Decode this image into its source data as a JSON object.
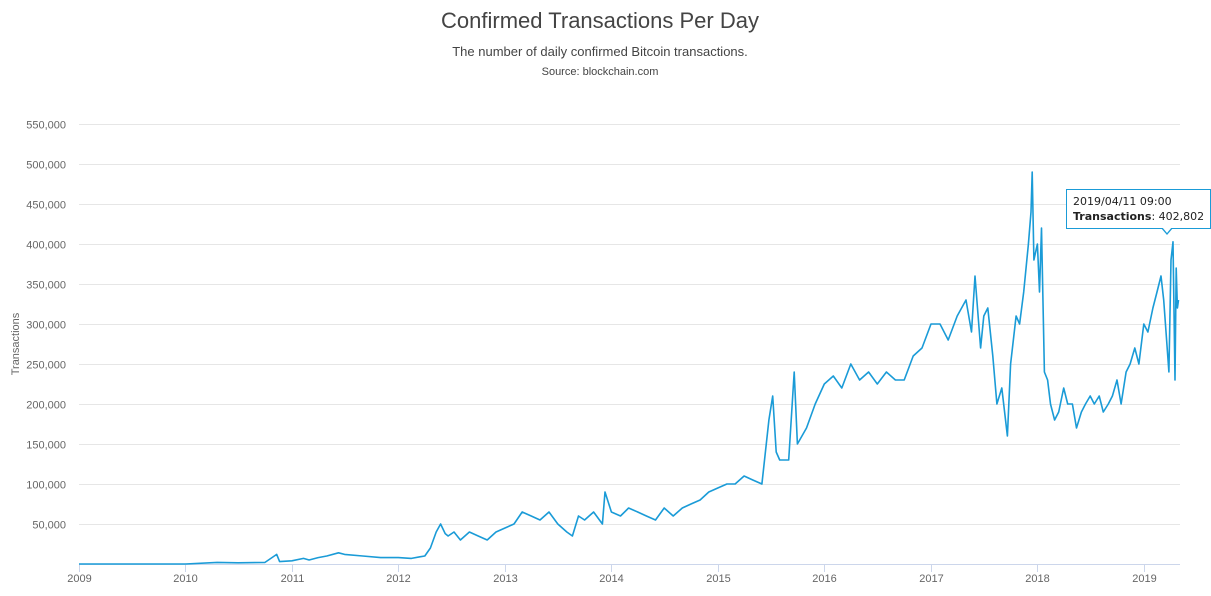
{
  "chart_data": {
    "type": "line",
    "title": "Confirmed Transactions Per Day",
    "subtitle": "The number of daily confirmed Bitcoin transactions.",
    "source": "Source: blockchain.com",
    "ylabel": "Transactions",
    "xlabel": "",
    "color": "#1a9bd7",
    "grid": true,
    "ylim": [
      0,
      550000
    ],
    "xlim": [
      "2009-01-01",
      "2019-05-05"
    ],
    "y_ticks": [
      "50,000",
      "100,000",
      "150,000",
      "200,000",
      "250,000",
      "300,000",
      "350,000",
      "400,000",
      "450,000",
      "500,000",
      "550,000"
    ],
    "y_tick_values": [
      50000,
      100000,
      150000,
      200000,
      250000,
      300000,
      350000,
      400000,
      450000,
      500000,
      550000
    ],
    "x_ticks": [
      "2009",
      "2010",
      "2011",
      "2012",
      "2013",
      "2014",
      "2015",
      "2016",
      "2017",
      "2018",
      "2019"
    ],
    "x_tick_dates": [
      "2009-01-01",
      "2010-01-01",
      "2011-01-01",
      "2012-01-01",
      "2013-01-01",
      "2014-01-01",
      "2015-01-01",
      "2016-01-01",
      "2017-01-01",
      "2018-01-01",
      "2019-01-01"
    ],
    "series": [
      {
        "x": [
          "2009-01-01",
          "2009-07-01",
          "2010-01-01",
          "2010-04-20",
          "2010-07-01",
          "2010-10-01",
          "2010-11-10",
          "2010-11-20",
          "2011-01-01",
          "2011-02-10",
          "2011-03-01",
          "2011-04-01",
          "2011-05-01",
          "2011-06-10",
          "2011-07-01",
          "2011-09-01",
          "2011-11-01",
          "2012-01-01",
          "2012-02-15",
          "2012-03-15",
          "2012-04-01",
          "2012-04-20",
          "2012-05-10",
          "2012-05-25",
          "2012-06-10",
          "2012-06-20",
          "2012-07-10",
          "2012-08-01",
          "2012-09-01",
          "2012-10-01",
          "2012-11-01",
          "2012-12-01",
          "2013-01-01",
          "2013-02-01",
          "2013-03-01",
          "2013-04-01",
          "2013-05-01",
          "2013-06-01",
          "2013-07-01",
          "2013-08-01",
          "2013-08-20",
          "2013-09-10",
          "2013-10-01",
          "2013-11-01",
          "2013-12-01",
          "2013-12-10",
          "2014-01-01",
          "2014-02-01",
          "2014-03-01",
          "2014-04-01",
          "2014-05-01",
          "2014-06-01",
          "2014-07-01",
          "2014-08-01",
          "2014-09-01",
          "2014-10-01",
          "2014-11-01",
          "2014-12-01",
          "2015-01-01",
          "2015-02-01",
          "2015-03-01",
          "2015-04-01",
          "2015-05-01",
          "2015-06-01",
          "2015-06-25",
          "2015-07-08",
          "2015-07-20",
          "2015-08-01",
          "2015-09-01",
          "2015-09-20",
          "2015-10-01",
          "2015-11-01",
          "2015-12-01",
          "2016-01-01",
          "2016-02-01",
          "2016-03-01",
          "2016-04-01",
          "2016-05-01",
          "2016-06-01",
          "2016-07-01",
          "2016-08-01",
          "2016-09-01",
          "2016-10-01",
          "2016-11-01",
          "2016-12-01",
          "2017-01-01",
          "2017-02-01",
          "2017-03-01",
          "2017-04-01",
          "2017-05-01",
          "2017-05-20",
          "2017-06-01",
          "2017-06-20",
          "2017-07-01",
          "2017-07-15",
          "2017-08-01",
          "2017-08-15",
          "2017-09-01",
          "2017-09-20",
          "2017-10-01",
          "2017-10-20",
          "2017-11-01",
          "2017-11-15",
          "2017-12-01",
          "2017-12-10",
          "2017-12-14",
          "2017-12-20",
          "2018-01-01",
          "2018-01-08",
          "2018-01-15",
          "2018-01-25",
          "2018-02-05",
          "2018-02-15",
          "2018-03-01",
          "2018-03-15",
          "2018-04-01",
          "2018-04-15",
          "2018-05-01",
          "2018-05-15",
          "2018-06-01",
          "2018-06-15",
          "2018-07-01",
          "2018-07-15",
          "2018-08-01",
          "2018-08-15",
          "2018-09-01",
          "2018-09-15",
          "2018-10-01",
          "2018-10-15",
          "2018-11-01",
          "2018-11-15",
          "2018-12-01",
          "2018-12-15",
          "2019-01-01",
          "2019-01-15",
          "2019-02-01",
          "2019-02-15",
          "2019-03-01",
          "2019-03-10",
          "2019-03-20",
          "2019-03-28",
          "2019-04-04",
          "2019-04-11",
          "2019-04-18",
          "2019-04-22",
          "2019-04-26",
          "2019-04-30"
        ],
        "values": [
          0,
          0,
          0,
          2000,
          1500,
          2000,
          12000,
          3000,
          4000,
          7000,
          5000,
          8000,
          10000,
          14000,
          12000,
          10000,
          8000,
          8000,
          7000,
          9000,
          10000,
          20000,
          40000,
          50000,
          38000,
          35000,
          40000,
          30000,
          40000,
          35000,
          30000,
          40000,
          45000,
          50000,
          65000,
          60000,
          55000,
          65000,
          50000,
          40000,
          35000,
          60000,
          55000,
          65000,
          50000,
          90000,
          65000,
          60000,
          70000,
          65000,
          60000,
          55000,
          70000,
          60000,
          70000,
          75000,
          80000,
          90000,
          95000,
          100000,
          100000,
          110000,
          105000,
          100000,
          180000,
          210000,
          140000,
          130000,
          130000,
          240000,
          150000,
          170000,
          200000,
          225000,
          235000,
          220000,
          250000,
          230000,
          240000,
          225000,
          240000,
          230000,
          230000,
          260000,
          270000,
          300000,
          300000,
          280000,
          310000,
          330000,
          290000,
          360000,
          270000,
          310000,
          320000,
          260000,
          200000,
          220000,
          160000,
          250000,
          310000,
          300000,
          340000,
          400000,
          440000,
          490000,
          380000,
          400000,
          340000,
          420000,
          240000,
          230000,
          200000,
          180000,
          190000,
          220000,
          200000,
          200000,
          170000,
          190000,
          200000,
          210000,
          200000,
          210000,
          190000,
          200000,
          210000,
          230000,
          200000,
          240000,
          250000,
          270000,
          250000,
          300000,
          290000,
          320000,
          340000,
          360000,
          330000,
          280000,
          240000,
          380000,
          402802,
          230000,
          370000,
          320000,
          330000
        ]
      }
    ]
  },
  "tooltip": {
    "date": "2019/04/11 09:00",
    "label": "Transactions",
    "value": "402,802"
  }
}
